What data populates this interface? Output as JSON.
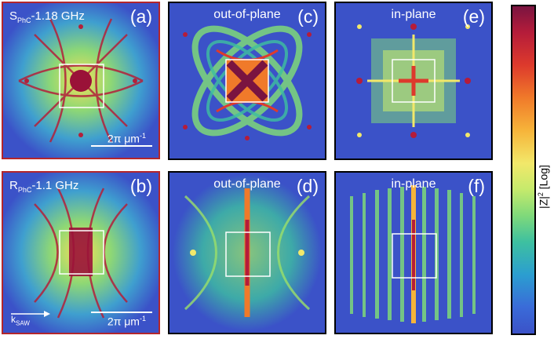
{
  "panels": {
    "a": {
      "letter": "(a)",
      "sub_main": "S",
      "sub_index": "PhC",
      "sub_rest": "-1.18 GHz",
      "scale_text": "2π μm",
      "scale_sup": "-1"
    },
    "b": {
      "letter": "(b)",
      "sub_main": "R",
      "sub_index": "PhC",
      "sub_rest": "-1.1 GHz",
      "scale_text": "2π μm",
      "scale_sup": "-1",
      "ksaw_main": "k",
      "ksaw_index": "SAW"
    },
    "c": {
      "letter": "(c)",
      "title": "out-of-plane"
    },
    "d": {
      "letter": "(d)",
      "title": "out-of-plane"
    },
    "e": {
      "letter": "(e)",
      "title": "in-plane"
    },
    "f": {
      "letter": "(f)",
      "title": "in-plane"
    }
  },
  "colorbar": {
    "label_main": "|Z|",
    "label_sup": "2",
    "label_rest": " [Log]"
  },
  "colors": {
    "background": "#3b52c8",
    "noise_green": "#9be06a",
    "peak": "#a0163c",
    "border_measured": "#b3262c",
    "border_simulated": "#000000"
  }
}
